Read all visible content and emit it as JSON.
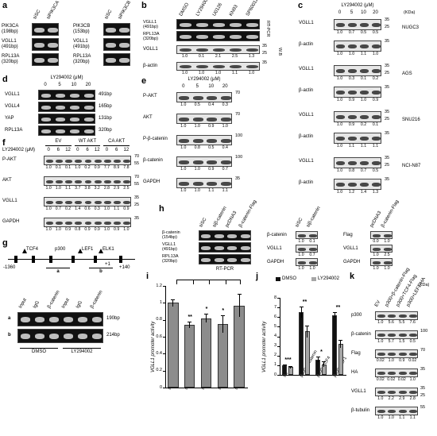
{
  "figure": {
    "a": {
      "label": "a",
      "groups": [
        {
          "lanes": [
            "siSC",
            "siPIK3CA"
          ],
          "rows": [
            "PIK3CA\n(198bp)",
            "VGLL1\n(491bp)",
            "RPL13A\n(320bp)"
          ]
        },
        {
          "lanes": [
            "siSC",
            "siPIK3CB"
          ],
          "rows": [
            "PIK3CB\n(153bp)",
            "VGLL1\n(491bp)",
            "RPL13A\n(320bp)"
          ]
        }
      ]
    },
    "b": {
      "label": "b",
      "lanes": [
        "DMSO",
        "LY294002",
        "U0126",
        "KN93",
        "SP600125"
      ],
      "gel": {
        "rows": [
          "VGLL1\n(491bp)",
          "RPL13A\n(320bp)"
        ],
        "method": "RT-PCR"
      },
      "wb": {
        "method": "W.B",
        "rows": [
          {
            "name": "VGLL1",
            "q": [
              "1.0",
              "0.1",
              "2.1",
              "2.5",
              "1.3"
            ],
            "kda": [
              "35",
              "25"
            ]
          },
          {
            "name": "β-actin",
            "q": [
              "1.0",
              "1.0",
              "1.0",
              "1.1",
              "1.0"
            ],
            "kda": [
              "35"
            ]
          }
        ]
      }
    },
    "c": {
      "label": "c",
      "treatment": "LY294002 (μM)",
      "lanes": [
        "0",
        "5",
        "10",
        "20"
      ],
      "unit": "(KDa)",
      "cells": [
        {
          "name": "NUGC3",
          "rows": [
            {
              "name": "VGLL1",
              "q": [
                "1.0",
                "0.7",
                "0.5",
                "0.5"
              ],
              "kda": [
                "35",
                "25"
              ]
            },
            {
              "name": "β-actin",
              "q": [
                "1.0",
                "1.0",
                "1.1",
                "1.0"
              ],
              "kda": [
                "35"
              ]
            }
          ]
        },
        {
          "name": "AGS",
          "rows": [
            {
              "name": "VGLL1",
              "q": [
                "1.0",
                "0.3",
                "0.1",
                "0.2"
              ],
              "kda": [
                "35",
                "25"
              ]
            },
            {
              "name": "β-actin",
              "q": [
                "1.0",
                "0.9",
                "1.0",
                "0.9"
              ],
              "kda": [
                "35"
              ]
            }
          ]
        },
        {
          "name": "SNU216",
          "rows": [
            {
              "name": "VGLL1",
              "q": [
                "1.0",
                "0.9",
                "0.2",
                "0.1"
              ],
              "kda": [
                "35",
                "25"
              ]
            },
            {
              "name": "β-actin",
              "q": [
                "1.0",
                "1.1",
                "1.1",
                "1.1"
              ],
              "kda": [
                "35"
              ]
            }
          ]
        },
        {
          "name": "NCI-N87",
          "rows": [
            {
              "name": "VGLL1",
              "q": [
                "1.0",
                "0.8",
                "0.7",
                "0.5"
              ],
              "kda": [
                "35",
                "25"
              ]
            },
            {
              "name": "β-actin",
              "q": [
                "1.0",
                "1.2",
                "1.4",
                "1.3"
              ],
              "kda": [
                "35"
              ]
            }
          ]
        }
      ]
    },
    "d": {
      "label": "d",
      "treatment": "LY294002 (μM)",
      "lanes": [
        "0",
        "5",
        "10",
        "20"
      ],
      "rows": [
        {
          "name": "VGLL1",
          "size": "491bp"
        },
        {
          "name": "VGLL4",
          "size": "165bp"
        },
        {
          "name": "YAP",
          "size": "131bp"
        },
        {
          "name": "RPL13A",
          "size": "320bp"
        }
      ]
    },
    "e": {
      "label": "e",
      "treatment": "LY294002 (μM)",
      "lanes": [
        "0",
        "5",
        "10",
        "20"
      ],
      "rows": [
        {
          "name": "P-AKT",
          "q": [
            "1.0",
            "0.5",
            "0.4",
            "0.3"
          ],
          "kda": [
            "70"
          ]
        },
        {
          "name": "AKT",
          "q": [
            "1.0",
            "1.0",
            "0.9",
            "1.0"
          ],
          "kda": [
            "70"
          ]
        },
        {
          "name": "P-β-catenin",
          "q": [
            "1.0",
            "0.8",
            "0.5",
            "0.4"
          ],
          "kda": [
            "100"
          ]
        },
        {
          "name": "β-catenin",
          "q": [
            "1.0",
            "1.0",
            "0.9",
            "0.7"
          ],
          "kda": [
            "100"
          ]
        },
        {
          "name": "GAPDH",
          "q": [
            "1.0",
            "1.0",
            "1.1",
            "1.1"
          ],
          "kda": [
            "35"
          ]
        }
      ]
    },
    "f": {
      "label": "f",
      "treatment": "LY294002 (μM)",
      "groups": [
        {
          "name": "EV",
          "lanes": [
            "0",
            "6",
            "12"
          ]
        },
        {
          "name": "WT AKT",
          "lanes": [
            "0",
            "6",
            "12"
          ]
        },
        {
          "name": "CA AKT",
          "lanes": [
            "0",
            "6",
            "12"
          ]
        }
      ],
      "rows": [
        {
          "name": "P-AKT",
          "q": [
            "1.0",
            "0.1",
            "0.1",
            "1.0",
            "0.2",
            "0.9",
            "7.7",
            "8.9",
            "7.8"
          ],
          "kda": [
            "70",
            "55"
          ]
        },
        {
          "name": "AKT",
          "q": [
            "1.0",
            "1.0",
            "1.1",
            "3.7",
            "3.8",
            "3.2",
            "2.8",
            "2.9",
            "2.5"
          ],
          "kda": [
            "70",
            "55"
          ]
        },
        {
          "name": "VGLL1",
          "q": [
            "1.0",
            "0.7",
            "0.2",
            "1.4",
            "0.6",
            "0.3",
            "1.0",
            "1.1",
            "0.9"
          ],
          "kda": [
            "35",
            "25"
          ]
        },
        {
          "name": "GAPDH",
          "q": [
            "1.0",
            "1.0",
            "0.9",
            "0.8",
            "0.9",
            "0.9",
            "1.0",
            "0.9",
            "1.0"
          ],
          "kda": [
            "35"
          ]
        }
      ]
    },
    "g": {
      "label": "g",
      "map": {
        "sites": [
          "TCF4",
          "p300",
          "LEF1",
          "ELK1"
        ],
        "coords": [
          "-1360",
          "+1",
          "+140"
        ],
        "regions": [
          "a",
          "b"
        ]
      },
      "gel": {
        "lanes": [
          "Input",
          "IgG",
          "β-catenin",
          "Input",
          "IgG",
          "β-catenin"
        ],
        "rows": [
          {
            "name": "a",
            "size": "190bp"
          },
          {
            "name": "b",
            "size": "214bp"
          }
        ],
        "groups": [
          "DMSO",
          "LY294002"
        ]
      }
    },
    "h": {
      "label": "h",
      "gel": {
        "lanes": [
          "siSC",
          "siβ-catenin",
          "pcDNA3",
          "β-catenin-Flag"
        ],
        "rows": [
          "β-catenin\n(154bp)",
          "VGLL1\n(491bp)",
          "RPL13A\n(320bp)"
        ],
        "method": "RT-PCR"
      },
      "wb": [
        {
          "lanes": [
            "siSC",
            "siβ-catenin"
          ],
          "rows": [
            {
              "name": "β-catenin",
              "q": [
                "1.0",
                "0.1"
              ]
            },
            {
              "name": "VGLL1",
              "q": [
                "1.0",
                "0.7"
              ]
            },
            {
              "name": "GAPDH",
              "q": [
                "1.0",
                "1.0"
              ]
            }
          ]
        },
        {
          "lanes": [
            "pcDNA3",
            "β-catenin-Flag"
          ],
          "rows": [
            {
              "name": "Flag",
              "q": [
                "0.0",
                "1.0"
              ]
            },
            {
              "name": "VGLL1",
              "q": [
                "1.0",
                "2.5"
              ]
            },
            {
              "name": "GAPDH",
              "q": [
                "1.0",
                "1.0"
              ]
            }
          ]
        }
      ]
    },
    "i": {
      "label": "i",
      "chart": {
        "type": "bar",
        "y_label": "VGLL1 promoter activity",
        "categories": [
          "siSC",
          "sip300",
          "siTCF4",
          "siLEF1",
          "siELK1"
        ],
        "values": [
          1.0,
          0.74,
          0.82,
          0.75,
          0.97
        ],
        "errors": [
          0.04,
          0.04,
          0.05,
          0.1,
          0.14
        ],
        "color": "#8c8c8c",
        "annotations": [
          null,
          "**",
          "*",
          "*",
          null
        ],
        "ylim": [
          0,
          1.2
        ],
        "yticks": [
          0,
          0.2,
          0.4,
          0.6,
          0.8,
          1,
          1.2
        ]
      }
    },
    "j": {
      "label": "j",
      "chart": {
        "type": "bar",
        "y_label": "VGLL1 promoter activity",
        "categories": [
          "EV",
          "p300+β-catenin",
          "p300+TCF4",
          "p300+LEF1"
        ],
        "series": [
          {
            "name": "DMSO",
            "color": "#111111",
            "values": [
              1.0,
              6.5,
              1.6,
              6.2
            ],
            "errors": [
              0.1,
              0.6,
              0.3,
              0.3
            ]
          },
          {
            "name": "LY294002",
            "color": "#a6a6a6",
            "values": [
              0.8,
              4.5,
              1.1,
              3.2
            ],
            "errors": [
              0.1,
              0.6,
              0.3,
              0.4
            ]
          }
        ],
        "annotations": [
          "***",
          "**",
          "*",
          "**"
        ],
        "ylim": [
          0,
          8
        ],
        "yticks": [
          0,
          1,
          2,
          3,
          4,
          5,
          6,
          7,
          8
        ]
      }
    },
    "k": {
      "label": "k",
      "unit": "(KDa)",
      "lanes": [
        "EV",
        "p300+β-catenin-Flag",
        "p300+TCF4-Flag",
        "p300+LEF1-HA"
      ],
      "rows": [
        {
          "name": "p300",
          "q": [
            "1.0",
            "5.6",
            "5.5",
            "7.6"
          ],
          "kda": []
        },
        {
          "name": "β-catenin",
          "q": [
            "1.0",
            "5.7",
            "1.5",
            "0.5"
          ],
          "kda": [
            "100"
          ]
        },
        {
          "name": "Flag",
          "q": [
            "0.02",
            "1.0",
            "0.9",
            "0.02"
          ],
          "kda": [
            "70"
          ]
        },
        {
          "name": "HA",
          "q": [
            "0.02",
            "0.02",
            "0.02",
            "1.0"
          ],
          "kda": [
            "35"
          ]
        },
        {
          "name": "VGLL1",
          "q": [
            "1.0",
            "2.2",
            "2.9",
            "2.8"
          ],
          "kda": [
            "35",
            "25"
          ]
        },
        {
          "name": "β-tubulin",
          "q": [
            "1.0",
            "1.0",
            "1.1",
            "1.1"
          ],
          "kda": [
            "55"
          ]
        }
      ]
    }
  }
}
